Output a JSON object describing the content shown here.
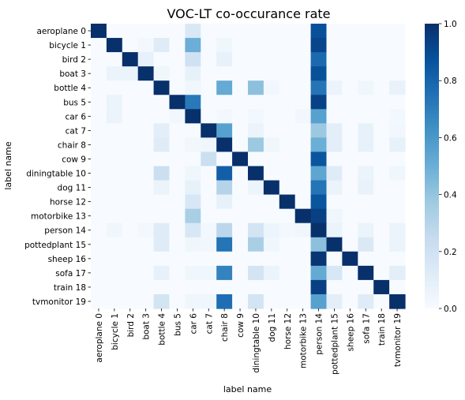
{
  "chart_data": {
    "type": "heatmap",
    "title": "VOC-LT co-occurance rate",
    "xlabel": "label name",
    "ylabel": "label name",
    "row_labels": [
      "aeroplane",
      "bicycle",
      "bird",
      "boat",
      "bottle",
      "bus",
      "car",
      "cat",
      "chair",
      "cow",
      "diningtable",
      "dog",
      "horse",
      "motorbike",
      "person",
      "pottedplant",
      "sheep",
      "sofa",
      "train",
      "tvmonitor"
    ],
    "col_labels": [
      "aeroplane",
      "bicycle",
      "bird",
      "boat",
      "bottle",
      "bus",
      "car",
      "cat",
      "chair",
      "cow",
      "diningtable",
      "dog",
      "horse",
      "motorbike",
      "person",
      "pottedplant",
      "sheep",
      "sofa",
      "train",
      "tvmonitor"
    ],
    "row_indices": [
      "0",
      "1",
      "2",
      "3",
      "4",
      "5",
      "6",
      "7",
      "8",
      "9",
      "10",
      "11",
      "12",
      "13",
      "14",
      "15",
      "16",
      "17",
      "18",
      "19"
    ],
    "col_indices": [
      "0",
      "1",
      "2",
      "3",
      "4",
      "5",
      "6",
      "7",
      "8",
      "9",
      "10",
      "11",
      "12",
      "13",
      "14",
      "15",
      "16",
      "17",
      "18",
      "19"
    ],
    "values": [
      [
        1.0,
        0.0,
        0.0,
        0.0,
        0.0,
        0.0,
        0.15,
        0.0,
        0.0,
        0.0,
        0.0,
        0.0,
        0.0,
        0.0,
        0.88,
        0.0,
        0.0,
        0.0,
        0.0,
        0.0
      ],
      [
        0.0,
        1.0,
        0.0,
        0.02,
        0.12,
        0.0,
        0.5,
        0.0,
        0.04,
        0.0,
        0.0,
        0.0,
        0.0,
        0.0,
        0.92,
        0.0,
        0.0,
        0.0,
        0.0,
        0.0
      ],
      [
        0.0,
        0.0,
        1.0,
        0.08,
        0.0,
        0.0,
        0.2,
        0.0,
        0.08,
        0.0,
        0.0,
        0.0,
        0.0,
        0.0,
        0.78,
        0.0,
        0.0,
        0.0,
        0.0,
        0.0
      ],
      [
        0.0,
        0.06,
        0.06,
        1.0,
        0.04,
        0.0,
        0.08,
        0.0,
        0.0,
        0.0,
        0.0,
        0.0,
        0.0,
        0.0,
        0.88,
        0.0,
        0.0,
        0.0,
        0.0,
        0.0
      ],
      [
        0.0,
        0.0,
        0.0,
        0.0,
        1.0,
        0.0,
        0.04,
        0.0,
        0.52,
        0.0,
        0.42,
        0.03,
        0.0,
        0.0,
        0.74,
        0.06,
        0.0,
        0.04,
        0.0,
        0.07
      ],
      [
        0.0,
        0.06,
        0.0,
        0.0,
        0.0,
        1.0,
        0.72,
        0.0,
        0.0,
        0.0,
        0.0,
        0.0,
        0.0,
        0.0,
        0.93,
        0.0,
        0.0,
        0.0,
        0.0,
        0.0
      ],
      [
        0.0,
        0.06,
        0.0,
        0.0,
        0.0,
        0.03,
        1.0,
        0.0,
        0.02,
        0.0,
        0.02,
        0.0,
        0.0,
        0.03,
        0.56,
        0.0,
        0.0,
        0.0,
        0.0,
        0.02
      ],
      [
        0.0,
        0.0,
        0.0,
        0.0,
        0.1,
        0.0,
        0.0,
        1.0,
        0.56,
        0.0,
        0.06,
        0.0,
        0.0,
        0.0,
        0.38,
        0.1,
        0.0,
        0.08,
        0.0,
        0.03
      ],
      [
        0.0,
        0.0,
        0.0,
        0.0,
        0.12,
        0.0,
        0.03,
        0.04,
        1.0,
        0.0,
        0.38,
        0.04,
        0.0,
        0.0,
        0.5,
        0.1,
        0.0,
        0.08,
        0.0,
        0.08
      ],
      [
        0.0,
        0.0,
        0.0,
        0.0,
        0.0,
        0.0,
        0.0,
        0.22,
        0.0,
        1.0,
        0.0,
        0.0,
        0.0,
        0.0,
        0.86,
        0.0,
        0.0,
        0.0,
        0.0,
        0.0
      ],
      [
        0.0,
        0.0,
        0.0,
        0.0,
        0.22,
        0.0,
        0.04,
        0.0,
        0.82,
        0.0,
        1.0,
        0.0,
        0.0,
        0.0,
        0.54,
        0.12,
        0.0,
        0.06,
        0.0,
        0.04
      ],
      [
        0.0,
        0.0,
        0.0,
        0.0,
        0.06,
        0.0,
        0.08,
        0.0,
        0.3,
        0.0,
        0.05,
        1.0,
        0.0,
        0.0,
        0.74,
        0.06,
        0.0,
        0.07,
        0.0,
        0.0
      ],
      [
        0.0,
        0.0,
        0.0,
        0.0,
        0.0,
        0.0,
        0.16,
        0.0,
        0.08,
        0.0,
        0.0,
        0.0,
        1.0,
        0.0,
        0.86,
        0.0,
        0.0,
        0.0,
        0.0,
        0.0
      ],
      [
        0.0,
        0.0,
        0.0,
        0.0,
        0.0,
        0.0,
        0.34,
        0.0,
        0.0,
        0.0,
        0.0,
        0.0,
        0.0,
        1.0,
        0.94,
        0.04,
        0.0,
        0.0,
        0.0,
        0.0
      ],
      [
        0.0,
        0.04,
        0.0,
        0.02,
        0.12,
        0.0,
        0.16,
        0.02,
        0.28,
        0.0,
        0.18,
        0.05,
        0.02,
        0.04,
        1.0,
        0.06,
        0.0,
        0.06,
        0.0,
        0.06
      ],
      [
        0.0,
        0.0,
        0.0,
        0.0,
        0.12,
        0.0,
        0.04,
        0.03,
        0.74,
        0.0,
        0.34,
        0.04,
        0.0,
        0.0,
        0.42,
        1.0,
        0.0,
        0.14,
        0.0,
        0.06
      ],
      [
        0.0,
        0.0,
        0.0,
        0.0,
        0.0,
        0.0,
        0.0,
        0.0,
        0.0,
        0.0,
        0.0,
        0.0,
        0.0,
        0.0,
        0.98,
        0.0,
        1.0,
        0.0,
        0.0,
        0.0
      ],
      [
        0.0,
        0.0,
        0.0,
        0.0,
        0.08,
        0.0,
        0.04,
        0.04,
        0.68,
        0.0,
        0.18,
        0.06,
        0.0,
        0.0,
        0.52,
        0.16,
        0.0,
        1.0,
        0.0,
        0.1
      ],
      [
        0.0,
        0.0,
        0.0,
        0.0,
        0.0,
        0.0,
        0.0,
        0.0,
        0.0,
        0.0,
        0.0,
        0.0,
        0.0,
        0.0,
        0.94,
        0.0,
        0.0,
        0.0,
        1.0,
        0.0
      ],
      [
        0.0,
        0.0,
        0.0,
        0.0,
        0.18,
        0.0,
        0.04,
        0.04,
        0.76,
        0.0,
        0.18,
        0.0,
        0.0,
        0.0,
        0.56,
        0.1,
        0.0,
        0.12,
        0.0,
        1.0
      ]
    ],
    "colorbar": {
      "range": [
        0.0,
        1.0
      ],
      "ticks": [
        "0.0",
        "0.2",
        "0.4",
        "0.6",
        "0.8",
        "1.0"
      ]
    },
    "colormap": "Blues",
    "colors": {
      "low": "#f7fbff",
      "high": "#08306b"
    },
    "grid": false
  }
}
